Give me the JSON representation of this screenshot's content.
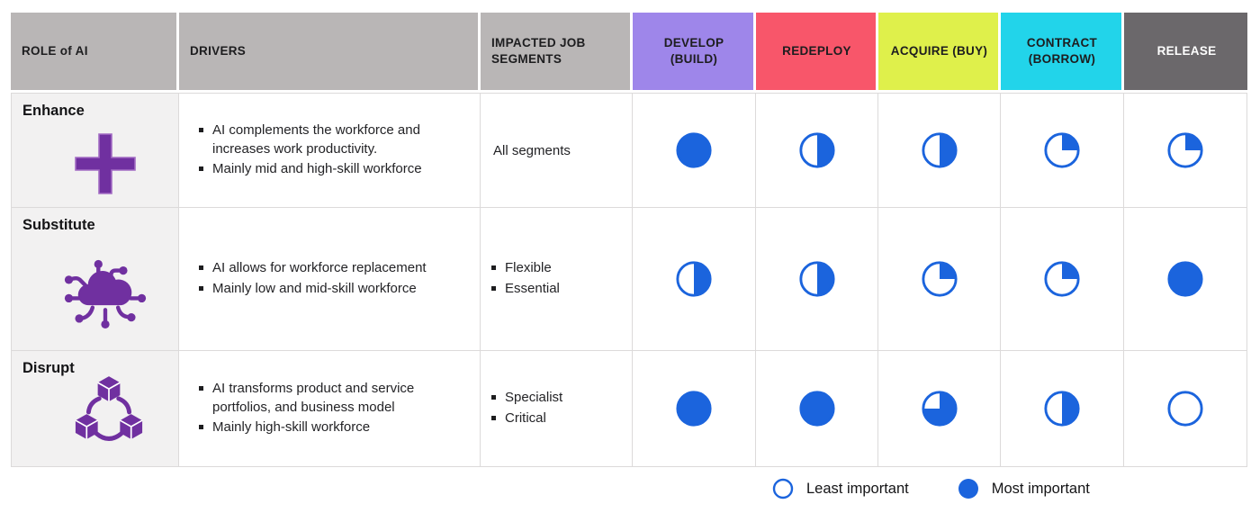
{
  "colors": {
    "indicator_blue": "#1b64dd",
    "icon_purple": "#7030a0",
    "header_gray": "#b9b6b6",
    "header_purple": "#9e86ea",
    "header_red": "#f8566a",
    "header_yellow_green": "#dff04b",
    "header_cyan": "#22d4ea",
    "header_dark_gray": "#6b686b",
    "role_cell_bg": "#f2f1f1"
  },
  "table": {
    "headers": [
      {
        "label": "ROLE of AI",
        "bg": "#b9b6b6",
        "fg": "#1d1d1f",
        "align": "left"
      },
      {
        "label": "DRIVERS",
        "bg": "#b9b6b6",
        "fg": "#1d1d1f",
        "align": "left"
      },
      {
        "label": "IMPACTED JOB SEGMENTS",
        "bg": "#b9b6b6",
        "fg": "#1d1d1f",
        "align": "left"
      },
      {
        "label": "DEVELOP (BUILD)",
        "bg": "#9e86ea",
        "fg": "#1d1d1f",
        "align": "center"
      },
      {
        "label": "REDEPLOY",
        "bg": "#f8566a",
        "fg": "#1d1d1f",
        "align": "center"
      },
      {
        "label": "ACQUIRE (BUY)",
        "bg": "#dff04b",
        "fg": "#1d1d1f",
        "align": "center"
      },
      {
        "label": "CONTRACT (BORROW)",
        "bg": "#22d4ea",
        "fg": "#1d1d1f",
        "align": "center"
      },
      {
        "label": "RELEASE",
        "bg": "#6b686b",
        "fg": "#ffffff",
        "align": "center"
      }
    ]
  },
  "rows": [
    {
      "role": "Enhance",
      "icon": "plus-icon",
      "drivers": [
        "AI complements the workforce and increases work productivity.",
        "Mainly mid and high-skill workforce"
      ],
      "segments": [
        "All segments"
      ],
      "scores": [
        100,
        50,
        50,
        25,
        25
      ]
    },
    {
      "role": "Substitute",
      "icon": "cloud-network-icon",
      "drivers": [
        "AI allows for workforce replacement",
        "Mainly low and mid-skill workforce"
      ],
      "segments": [
        "Flexible",
        "Essential"
      ],
      "scores": [
        50,
        50,
        25,
        25,
        100
      ]
    },
    {
      "role": "Disrupt",
      "icon": "cubes-icon",
      "drivers": [
        "AI transforms product and service portfolios, and business model",
        "Mainly high-skill workforce"
      ],
      "segments": [
        "Specialist",
        "Critical"
      ],
      "scores": [
        100,
        100,
        75,
        50,
        0
      ]
    }
  ],
  "legend": {
    "least_label": "Least important",
    "most_label": "Most important"
  },
  "chart_data": {
    "type": "table",
    "columns": [
      "DEVELOP (BUILD)",
      "REDEPLOY",
      "ACQUIRE (BUY)",
      "CONTRACT (BORROW)",
      "RELEASE"
    ],
    "row_categories": [
      "Enhance",
      "Substitute",
      "Disrupt"
    ],
    "values_importance_pct": [
      [
        100,
        50,
        50,
        25,
        25
      ],
      [
        50,
        50,
        25,
        25,
        100
      ],
      [
        100,
        100,
        75,
        50,
        0
      ]
    ],
    "value_encoding": "harvey-ball pie fill, clockwise from 12 o'clock",
    "scale_min_label": "Least important",
    "scale_max_label": "Most important",
    "legend_position": "bottom-right"
  }
}
